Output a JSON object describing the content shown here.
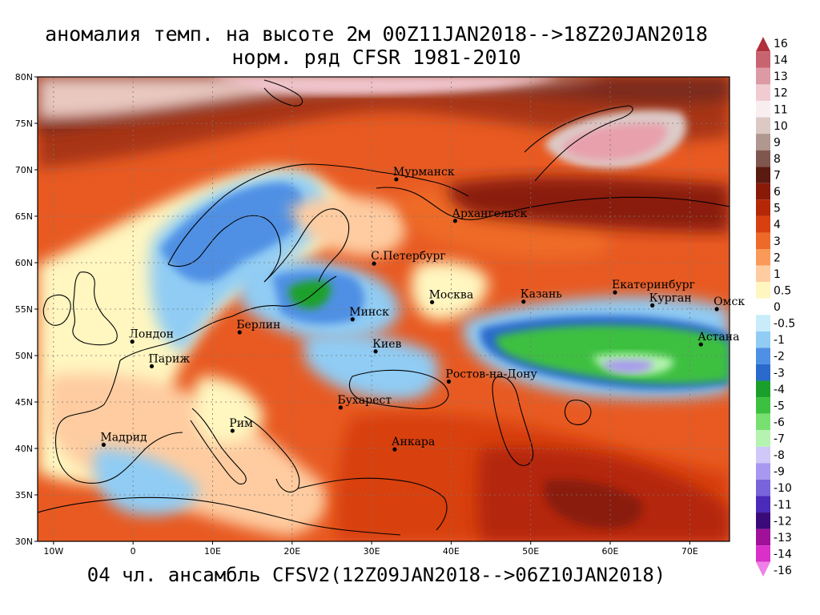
{
  "title_line1": "аномалия темп. на высоте 2м 00Z11JAN2018-->18Z20JAN2018",
  "title_line2": "норм. ряд CFSR 1981-2010",
  "footer": "04 чл. ансамбль CFSV2(12Z09JAN2018-->06Z10JAN2018)",
  "axes": {
    "lat_labels": [
      "80N",
      "75N",
      "70N",
      "65N",
      "60N",
      "55N",
      "50N",
      "45N",
      "40N",
      "35N",
      "30N"
    ],
    "lon_labels": [
      "10W",
      "0",
      "10E",
      "20E",
      "30E",
      "40E",
      "50E",
      "60E",
      "70E"
    ],
    "lat_range": [
      30,
      80
    ],
    "lon_range": [
      -12,
      75
    ]
  },
  "cities": [
    {
      "name": "Мурманск",
      "lon": 33.1,
      "lat": 68.97
    },
    {
      "name": "Архангельск",
      "lon": 40.5,
      "lat": 64.5
    },
    {
      "name": "С.Петербург",
      "lon": 30.3,
      "lat": 59.9
    },
    {
      "name": "Москва",
      "lon": 37.6,
      "lat": 55.75
    },
    {
      "name": "Казань",
      "lon": 49.1,
      "lat": 55.8
    },
    {
      "name": "Екатеринбург",
      "lon": 60.6,
      "lat": 56.8
    },
    {
      "name": "Курган",
      "lon": 65.3,
      "lat": 55.4
    },
    {
      "name": "Омск",
      "lon": 73.4,
      "lat": 55.0
    },
    {
      "name": "Астана",
      "lon": 71.4,
      "lat": 51.2
    },
    {
      "name": "Минск",
      "lon": 27.6,
      "lat": 53.9
    },
    {
      "name": "Киев",
      "lon": 30.5,
      "lat": 50.45
    },
    {
      "name": "Берлин",
      "lon": 13.4,
      "lat": 52.5
    },
    {
      "name": "Лондон",
      "lon": -0.1,
      "lat": 51.5
    },
    {
      "name": "Париж",
      "lon": 2.35,
      "lat": 48.85
    },
    {
      "name": "Ростов-на-Дону",
      "lon": 39.7,
      "lat": 47.2
    },
    {
      "name": "Бухарест",
      "lon": 26.1,
      "lat": 44.4
    },
    {
      "name": "Рим",
      "lon": 12.5,
      "lat": 41.9
    },
    {
      "name": "Мадрид",
      "lon": -3.7,
      "lat": 40.4
    },
    {
      "name": "Анкара",
      "lon": 32.9,
      "lat": 39.9
    }
  ],
  "colorbar": {
    "labels": [
      "16",
      "14",
      "13",
      "12",
      "11",
      "10",
      "9",
      "8",
      "7",
      "6",
      "5",
      "4",
      "3",
      "2",
      "1",
      "0.5",
      "0",
      "-0.5",
      "-1",
      "-2",
      "-3",
      "-4",
      "-5",
      "-6",
      "-7",
      "-8",
      "-9",
      "-10",
      "-11",
      "-12",
      "-13",
      "-14",
      "-16"
    ],
    "colors": [
      "#b0303c",
      "#c86470",
      "#dc9aa4",
      "#f0ccd2",
      "#f8eef0",
      "#dcc9c4",
      "#b09890",
      "#80574e",
      "#5a1a10",
      "#8a1a08",
      "#b42808",
      "#d84010",
      "#ee6a28",
      "#fa9a58",
      "#fecca0",
      "#fff6c0",
      "#ffffff",
      "#c8ecfa",
      "#90ccf4",
      "#5090e4",
      "#2a6acc",
      "#1aa02a",
      "#3cc040",
      "#78e070",
      "#b4f4b0",
      "#d0c8f8",
      "#a898f0",
      "#7a64dc",
      "#4a2ab8",
      "#3a0a78",
      "#a01098",
      "#d830c8",
      "#f080e8"
    ]
  },
  "anomaly_regions": [
    {
      "lon": 0,
      "lat": 78,
      "rx": 14,
      "ry": 2.5,
      "value": 11
    },
    {
      "lon": 25,
      "lat": 78,
      "rx": 14,
      "ry": 2.5,
      "value": 12
    },
    {
      "lon": 65,
      "lat": 72,
      "rx": 6,
      "ry": 2.5,
      "value": 13
    },
    {
      "lon": 20,
      "lat": 63,
      "rx": 4,
      "ry": 3,
      "value": -1
    },
    {
      "lon": 26,
      "lat": 56,
      "rx": 5,
      "ry": 2,
      "value": -2
    },
    {
      "lon": 24,
      "lat": 57,
      "rx": 1.8,
      "ry": 1.2,
      "value": -4
    },
    {
      "lon": 60,
      "lat": 51.5,
      "rx": 12,
      "ry": 2.5,
      "value": -4
    },
    {
      "lon": 62,
      "lat": 49,
      "rx": 4,
      "ry": 1,
      "value": -7
    },
    {
      "lon": 10,
      "lat": 52,
      "rx": 6,
      "ry": 2,
      "value": -1
    },
    {
      "lon": -6,
      "lat": 52,
      "rx": 3,
      "ry": 3,
      "value": -1
    },
    {
      "lon": 36,
      "lat": 42,
      "rx": 10,
      "ry": 3,
      "value": 3
    },
    {
      "lon": 55,
      "lat": 38,
      "rx": 14,
      "ry": 6,
      "value": 4
    },
    {
      "lon": 64,
      "lat": 34,
      "rx": 7,
      "ry": 3,
      "value": 5
    }
  ]
}
